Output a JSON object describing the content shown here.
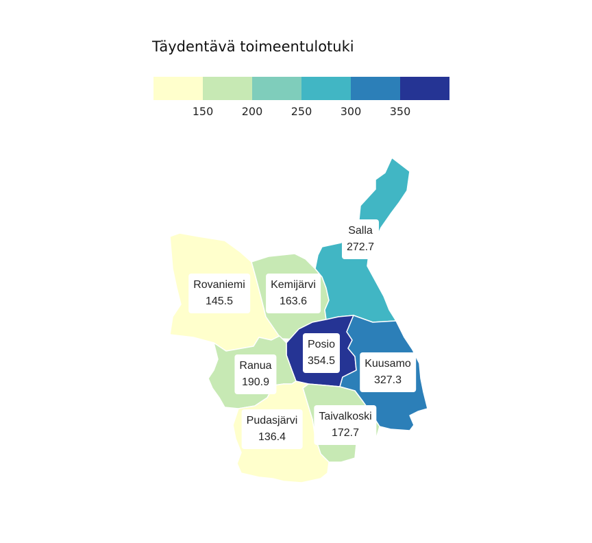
{
  "legend": {
    "title": "Täydentävä toimeentulotuki",
    "colors": [
      "#ffffcc",
      "#c7e9b4",
      "#7fcdbb",
      "#41b6c4",
      "#2c7fb8",
      "#253494"
    ],
    "ticks": [
      "150",
      "200",
      "250",
      "300",
      "350"
    ]
  },
  "regions": [
    {
      "name": "Rovaniemi",
      "value": "145.5",
      "color": "#ffffcc"
    },
    {
      "name": "Kemijärvi",
      "value": "163.6",
      "color": "#c7e9b4"
    },
    {
      "name": "Salla",
      "value": "272.7",
      "color": "#41b6c4"
    },
    {
      "name": "Posio",
      "value": "354.5",
      "color": "#253494"
    },
    {
      "name": "Kuusamo",
      "value": "327.3",
      "color": "#2c7fb8"
    },
    {
      "name": "Ranua",
      "value": "190.9",
      "color": "#c7e9b4"
    },
    {
      "name": "Pudasjärvi",
      "value": "136.4",
      "color": "#ffffcc"
    },
    {
      "name": "Taivalkoski",
      "value": "172.7",
      "color": "#c7e9b4"
    }
  ]
}
